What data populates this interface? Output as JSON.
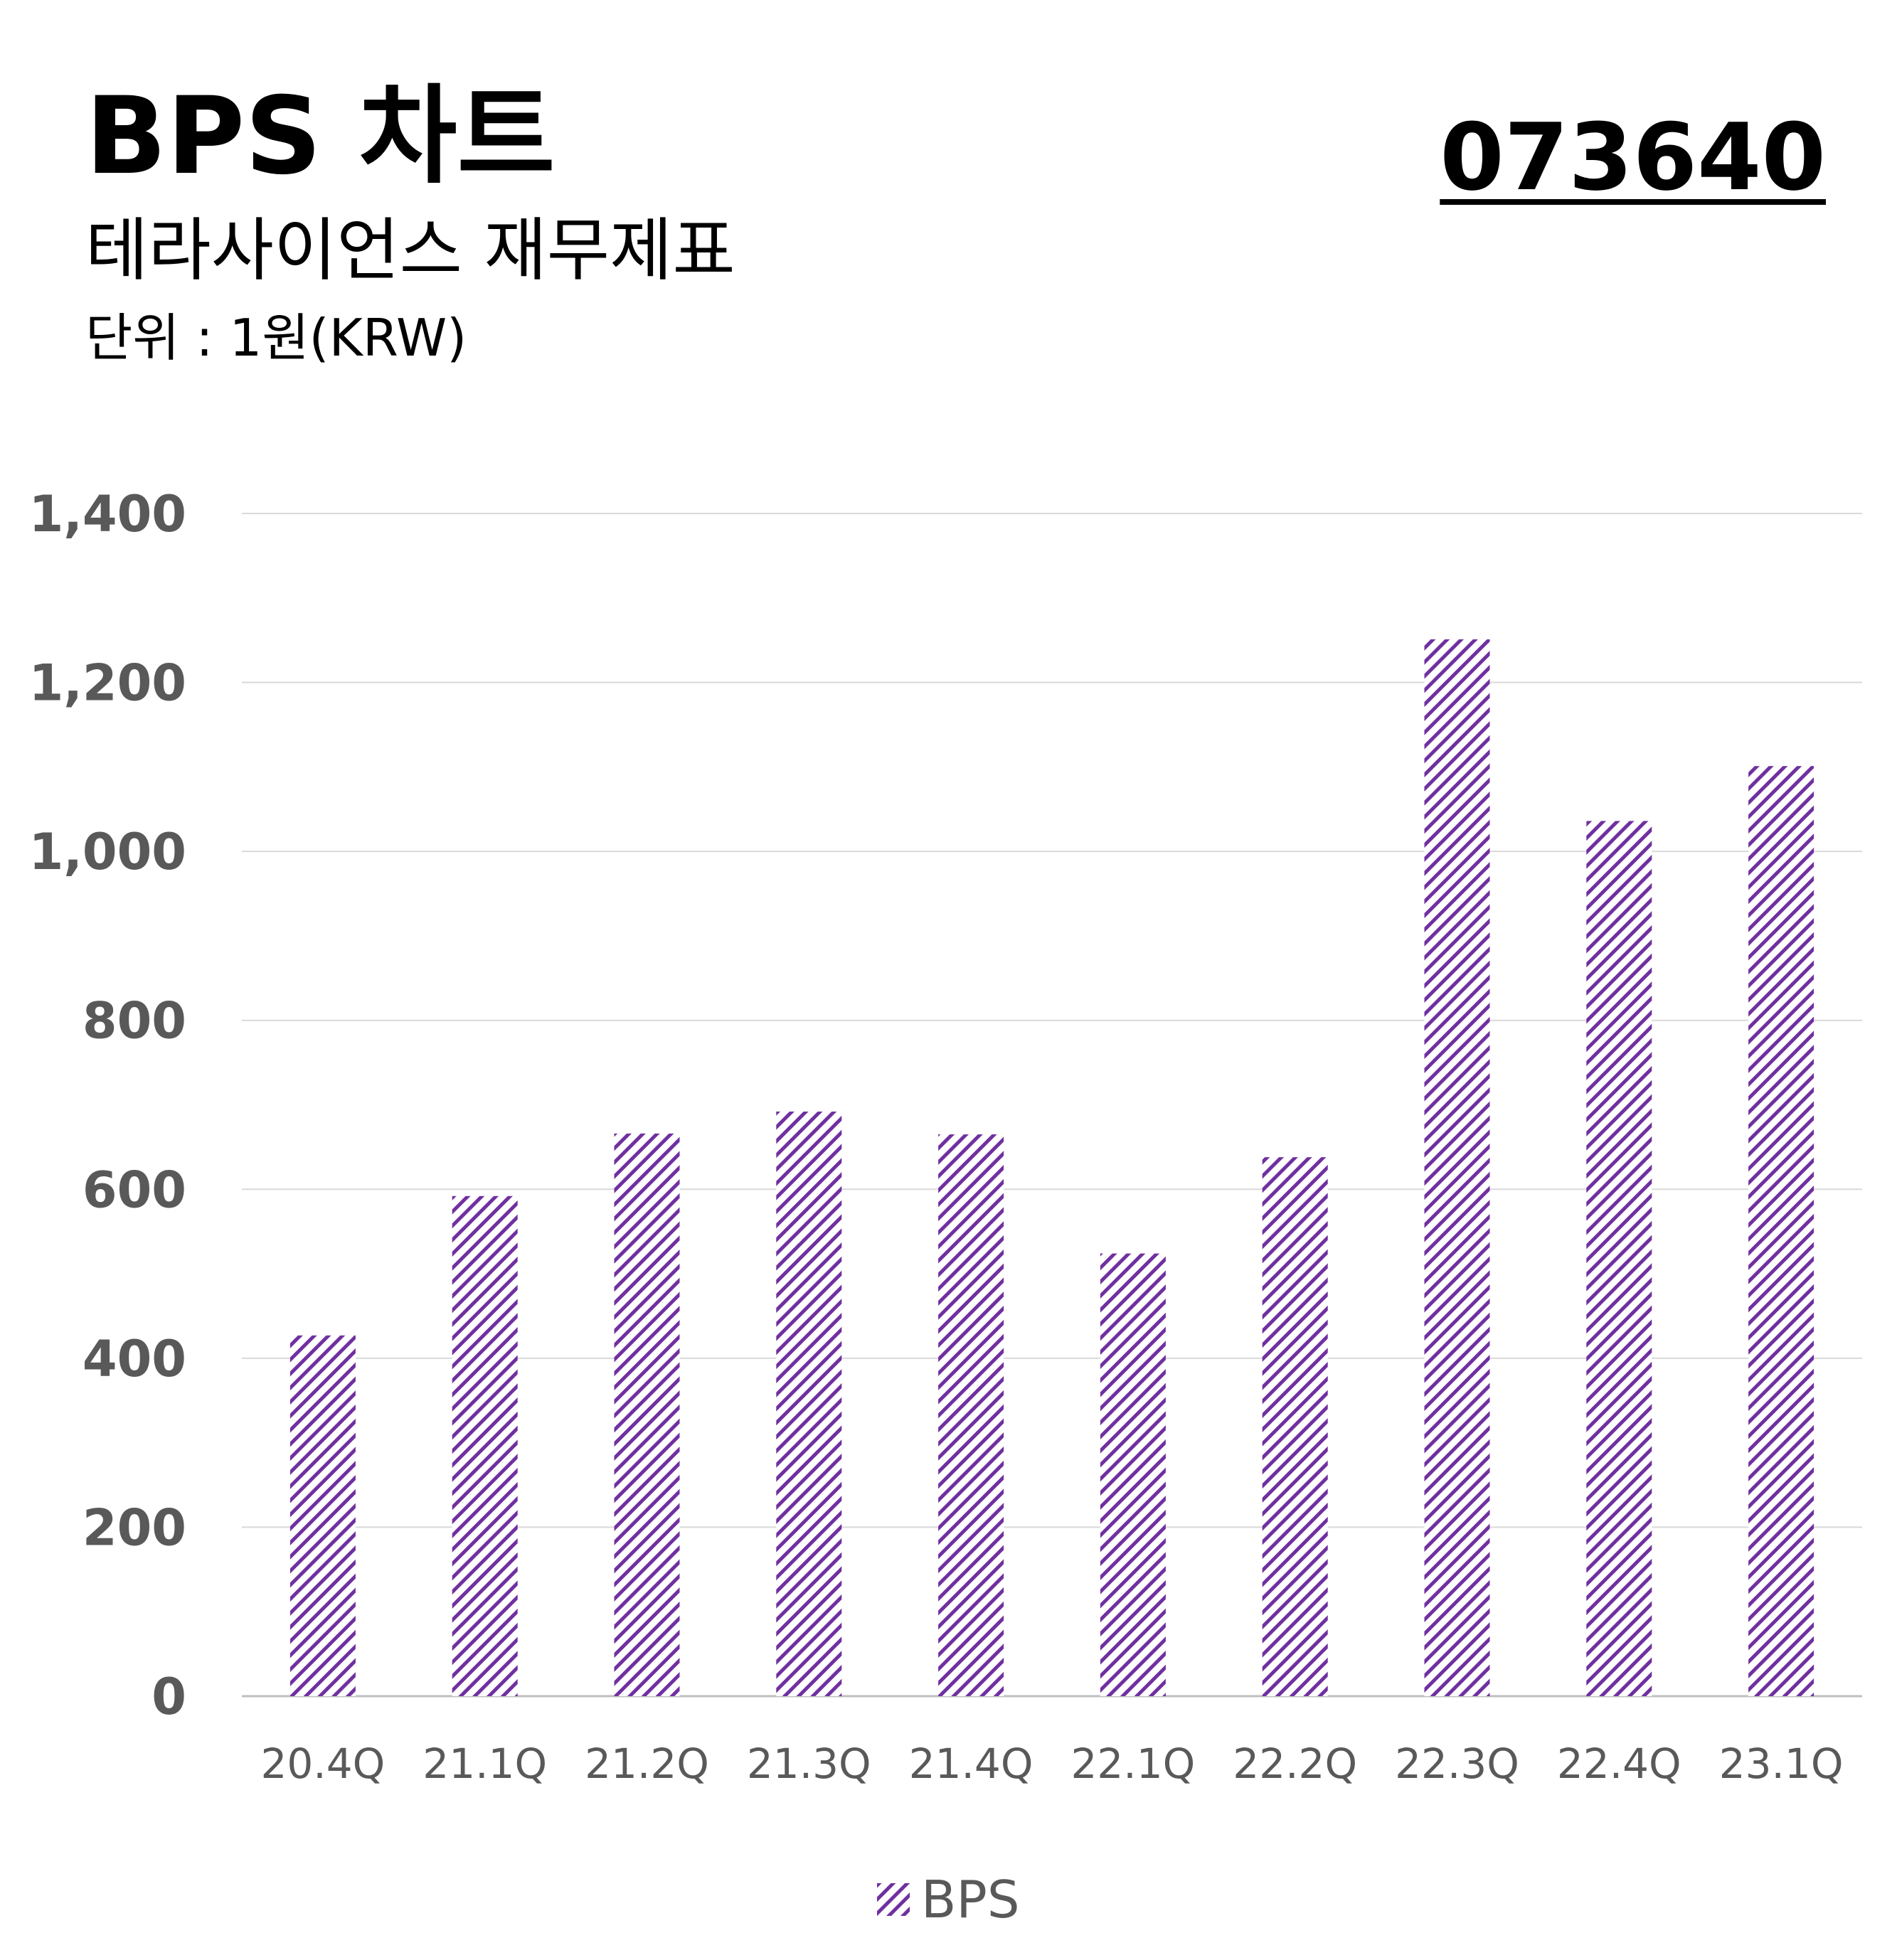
{
  "header": {
    "title": "BPS 차트",
    "subtitle": "테라사이언스 재무제표",
    "unit": "단위 : 1원(KRW)",
    "code": "073640"
  },
  "colors": {
    "bar_stripe": "#7030a0",
    "grid": "#d9d9d9",
    "tick_text": "#595959"
  },
  "chart_data": {
    "type": "bar",
    "categories": [
      "20.4Q",
      "21.1Q",
      "21.2Q",
      "21.3Q",
      "21.4Q",
      "22.1Q",
      "22.2Q",
      "22.3Q",
      "22.4Q",
      "23.1Q"
    ],
    "series": [
      {
        "name": "BPS",
        "values": [
          427,
          592,
          666,
          692,
          665,
          524,
          638,
          1251,
          1036,
          1101
        ],
        "pattern": "diagonal-stripes"
      }
    ],
    "yticks": [
      "0",
      "200",
      "400",
      "600",
      "800",
      "1,000",
      "1,200",
      "1,400"
    ],
    "ylim": [
      0,
      1400
    ],
    "grid": true,
    "legend_position": "bottom-center"
  }
}
